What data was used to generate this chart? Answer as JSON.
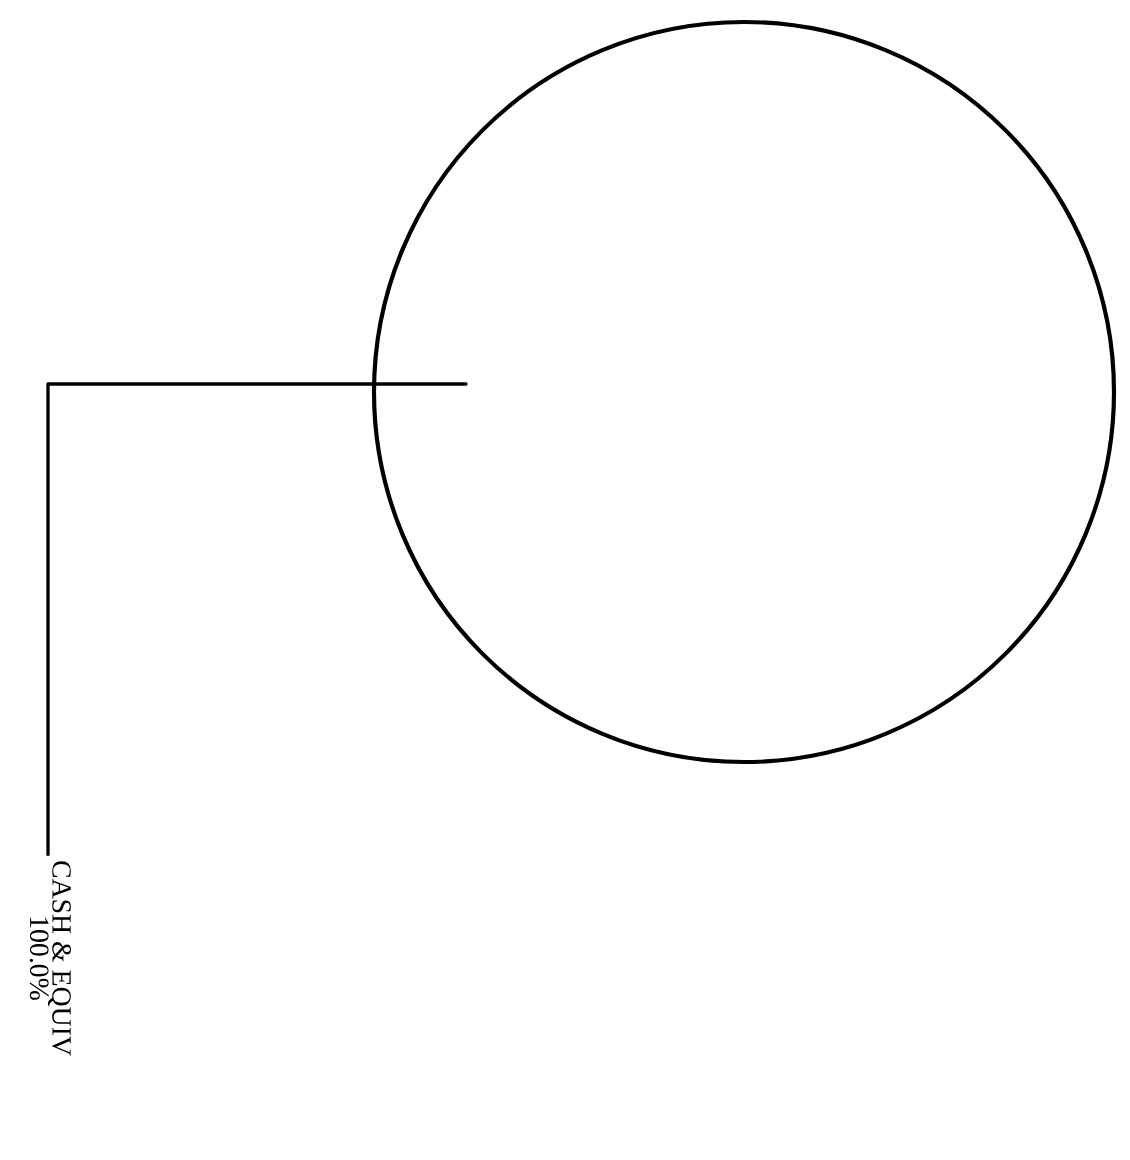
{
  "chart_data": {
    "type": "pie",
    "categories": [
      "CASH & EQUIV"
    ],
    "values": [
      100
    ],
    "value_labels": [
      "100.0%"
    ],
    "colors": [
      "#ffffff"
    ]
  }
}
